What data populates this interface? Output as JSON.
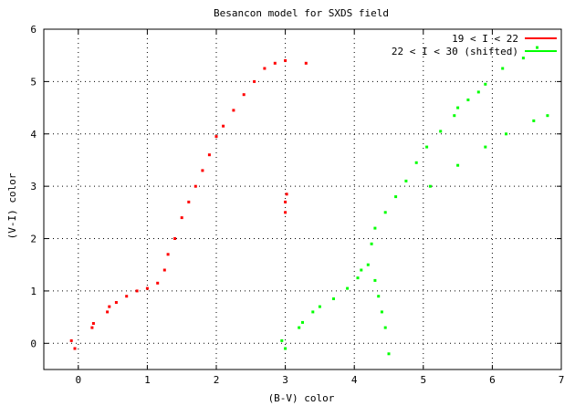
{
  "chart_data": {
    "type": "scatter",
    "title": "Besancon model for SXDS field",
    "xlabel": "(B-V) color",
    "ylabel": "(V-I) color",
    "xlim": [
      -0.5,
      7
    ],
    "ylim": [
      -0.5,
      6
    ],
    "xticks": [
      0,
      1,
      2,
      3,
      4,
      5,
      6,
      7
    ],
    "yticks": [
      0,
      1,
      2,
      3,
      4,
      5,
      6
    ],
    "grid": true,
    "legend_position": "top-right",
    "series": [
      {
        "name": "19 < I < 22",
        "color": "#ff0000",
        "points": [
          [
            -0.1,
            0.05
          ],
          [
            -0.05,
            -0.1
          ],
          [
            0.2,
            0.3
          ],
          [
            0.22,
            0.38
          ],
          [
            0.42,
            0.6
          ],
          [
            0.45,
            0.7
          ],
          [
            0.55,
            0.78
          ],
          [
            0.7,
            0.9
          ],
          [
            0.85,
            1.0
          ],
          [
            1.0,
            1.05
          ],
          [
            1.15,
            1.15
          ],
          [
            1.25,
            1.4
          ],
          [
            1.3,
            1.7
          ],
          [
            1.4,
            2.0
          ],
          [
            1.5,
            2.4
          ],
          [
            1.6,
            2.7
          ],
          [
            1.7,
            3.0
          ],
          [
            1.8,
            3.3
          ],
          [
            1.9,
            3.6
          ],
          [
            2.0,
            3.95
          ],
          [
            2.1,
            4.15
          ],
          [
            2.25,
            4.45
          ],
          [
            2.4,
            4.75
          ],
          [
            2.55,
            5.0
          ],
          [
            2.7,
            5.25
          ],
          [
            2.85,
            5.35
          ],
          [
            3.0,
            5.4
          ],
          [
            3.3,
            5.35
          ],
          [
            3.0,
            2.5
          ],
          [
            3.02,
            2.85
          ],
          [
            3.0,
            2.7
          ]
        ]
      },
      {
        "name": "22 < I < 30 (shifted)",
        "color": "#00ff00",
        "points": [
          [
            2.95,
            0.05
          ],
          [
            3.0,
            -0.1
          ],
          [
            3.2,
            0.3
          ],
          [
            3.25,
            0.4
          ],
          [
            3.4,
            0.6
          ],
          [
            3.5,
            0.7
          ],
          [
            3.7,
            0.85
          ],
          [
            3.9,
            1.05
          ],
          [
            4.05,
            1.25
          ],
          [
            4.1,
            1.4
          ],
          [
            4.2,
            1.5
          ],
          [
            4.25,
            1.9
          ],
          [
            4.3,
            2.2
          ],
          [
            4.45,
            2.5
          ],
          [
            4.6,
            2.8
          ],
          [
            4.75,
            3.1
          ],
          [
            4.9,
            3.45
          ],
          [
            5.05,
            3.75
          ],
          [
            5.25,
            4.05
          ],
          [
            5.45,
            4.35
          ],
          [
            5.65,
            4.65
          ],
          [
            5.9,
            4.95
          ],
          [
            6.15,
            5.25
          ],
          [
            6.45,
            5.45
          ],
          [
            6.65,
            5.65
          ],
          [
            4.3,
            1.2
          ],
          [
            4.35,
            0.9
          ],
          [
            4.4,
            0.6
          ],
          [
            4.45,
            0.3
          ],
          [
            4.5,
            -0.2
          ],
          [
            5.1,
            3.0
          ],
          [
            5.5,
            3.4
          ],
          [
            5.9,
            3.75
          ],
          [
            6.2,
            4.0
          ],
          [
            6.6,
            4.25
          ],
          [
            6.8,
            4.35
          ],
          [
            5.5,
            4.5
          ],
          [
            5.8,
            4.8
          ]
        ]
      }
    ]
  }
}
